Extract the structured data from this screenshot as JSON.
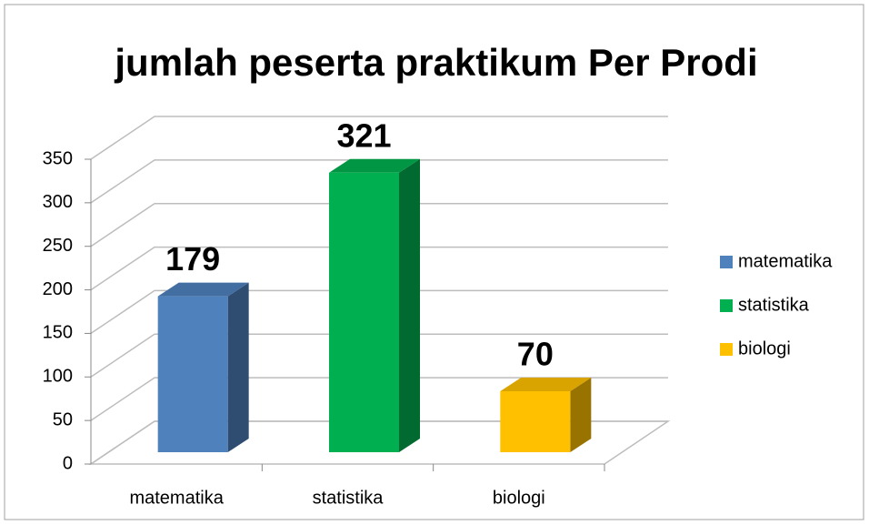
{
  "chart_data": {
    "type": "bar3d",
    "title": "jumlah peserta praktikum Per Prodi",
    "categories": [
      "matematika",
      "statistika",
      "biologi"
    ],
    "values": [
      179,
      321,
      70
    ],
    "colors": [
      "#4f81bd",
      "#00b050",
      "#ffc000"
    ],
    "ylim": [
      0,
      350
    ],
    "yticks": [
      0,
      50,
      100,
      150,
      200,
      250,
      300,
      350
    ],
    "grid": true,
    "legend": "right"
  }
}
